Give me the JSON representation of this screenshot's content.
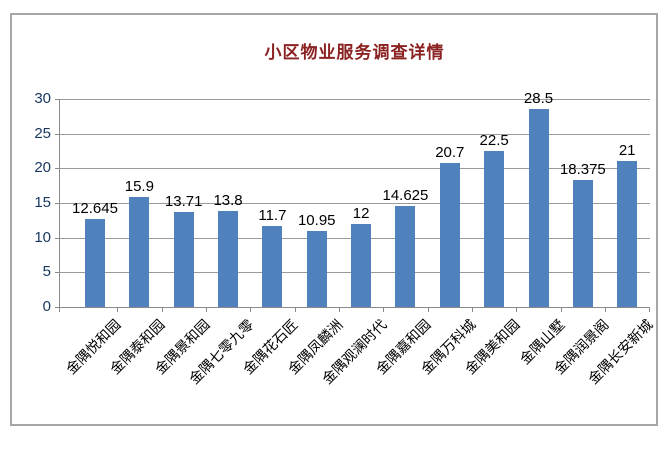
{
  "chart_data": {
    "type": "bar",
    "title": "小区物业服务调查详情",
    "categories": [
      "金隅悦和园",
      "金隅泰和园",
      "金隅景和园",
      "金隅七零九零",
      "金隅花石匠",
      "金隅凤麟洲",
      "金隅观澜时代",
      "金隅嘉和园",
      "金隅万科城",
      "金隅美和园",
      "金隅山墅",
      "金隅润景阁",
      "金隅长安新城"
    ],
    "values": [
      12.645,
      15.9,
      13.71,
      13.8,
      11.7,
      10.95,
      12,
      14.625,
      20.7,
      22.5,
      28.5,
      18.375,
      21
    ],
    "data_labels": [
      "12.645",
      "15.9",
      "13.71",
      "13.8",
      "11.7",
      "10.95",
      "12",
      "14.625",
      "20.7",
      "22.5",
      "28.5",
      "18.375",
      "21"
    ],
    "xlabel": "",
    "ylabel": "",
    "ylim": [
      0,
      30
    ],
    "ytick_step": 5,
    "ytick_labels": [
      "0",
      "5",
      "10",
      "15",
      "20",
      "25",
      "30"
    ],
    "grid": "horizontal",
    "legend": "none",
    "bar_color": "#4f81bd",
    "title_color": "#8b2222",
    "ytick_label_color": "#17375e",
    "xtick_label_color": "#000000",
    "data_label_color": "#000000",
    "gridline_color": "#9a9a9a",
    "axis_color": "#8a8a8a",
    "frame_border_color": "#a6a6a6"
  }
}
